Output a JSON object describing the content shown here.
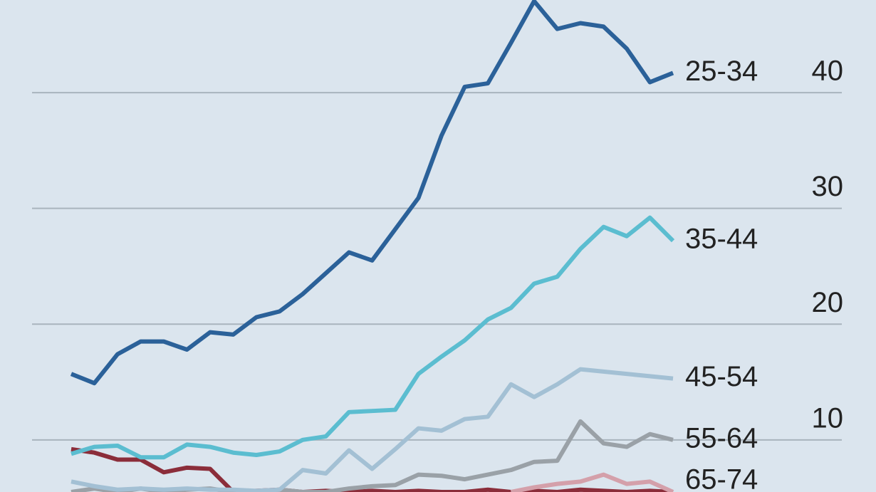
{
  "chart_data": {
    "type": "line",
    "categories": [
      null,
      null,
      null,
      null,
      null,
      null,
      null,
      null,
      null,
      null,
      null,
      null,
      null,
      null,
      null,
      null,
      null,
      null,
      null,
      null,
      null,
      null,
      null,
      null,
      null,
      null,
      null
    ],
    "ylim": [
      5.5,
      48
    ],
    "yticks": [
      10,
      20,
      30,
      40
    ],
    "grid": true,
    "series": [
      {
        "name": "25-34",
        "color": "#2b6199",
        "values": [
          15.7,
          14.9,
          17.4,
          18.5,
          18.5,
          17.8,
          19.3,
          19.1,
          20.6,
          21.1,
          22.6,
          24.4,
          26.2,
          25.5,
          28.2,
          30.9,
          36.3,
          40.5,
          40.8,
          44.3,
          47.9,
          45.5,
          46.0,
          45.7,
          43.8,
          40.9,
          41.7
        ]
      },
      {
        "name": "35-44",
        "color": "#5bbdd0",
        "values": [
          8.8,
          9.4,
          9.5,
          8.5,
          8.5,
          9.6,
          9.4,
          8.9,
          8.7,
          9.0,
          10.0,
          10.3,
          12.4,
          12.5,
          12.6,
          15.7,
          17.2,
          18.6,
          20.4,
          21.4,
          23.5,
          24.1,
          26.5,
          28.4,
          27.6,
          29.2,
          27.2
        ]
      },
      {
        "name": "45-54",
        "color": "#a3c0d4",
        "values": [
          6.4,
          6.0,
          5.7,
          5.8,
          5.7,
          5.8,
          5.7,
          5.7,
          5.6,
          5.7,
          7.4,
          7.1,
          9.1,
          7.5,
          9.2,
          11.0,
          10.8,
          11.8,
          12.0,
          14.8,
          13.7,
          14.8,
          16.1,
          15.9,
          15.7,
          15.5,
          15.3
        ]
      },
      {
        "name": "55-64",
        "color": "#9aa1a7",
        "values": [
          5.5,
          5.8,
          5.5,
          5.8,
          5.5,
          5.7,
          5.8,
          5.5,
          5.5,
          5.7,
          5.5,
          5.5,
          5.8,
          6.0,
          6.1,
          7.0,
          6.9,
          6.6,
          7.0,
          7.4,
          8.1,
          8.2,
          11.6,
          9.7,
          9.4,
          10.5,
          10.0
        ]
      },
      {
        "name": "65-74",
        "color": "#d4a0aa",
        "values": [
          null,
          null,
          null,
          null,
          null,
          null,
          null,
          null,
          null,
          null,
          null,
          null,
          null,
          null,
          null,
          null,
          null,
          null,
          null,
          5.5,
          5.9,
          6.2,
          6.4,
          7.0,
          6.2,
          6.4,
          5.5
        ]
      },
      {
        "color": "#8b2d3a",
        "values": [
          9.2,
          8.9,
          8.3,
          8.3,
          7.2,
          7.6,
          7.5,
          5.5,
          5.6,
          5.7,
          5.5,
          5.6,
          5.5,
          5.6,
          5.5,
          5.6,
          5.5,
          5.5,
          5.7,
          5.5,
          5.6,
          5.5,
          5.7,
          5.6,
          5.5,
          5.6,
          5.5
        ]
      }
    ]
  }
}
